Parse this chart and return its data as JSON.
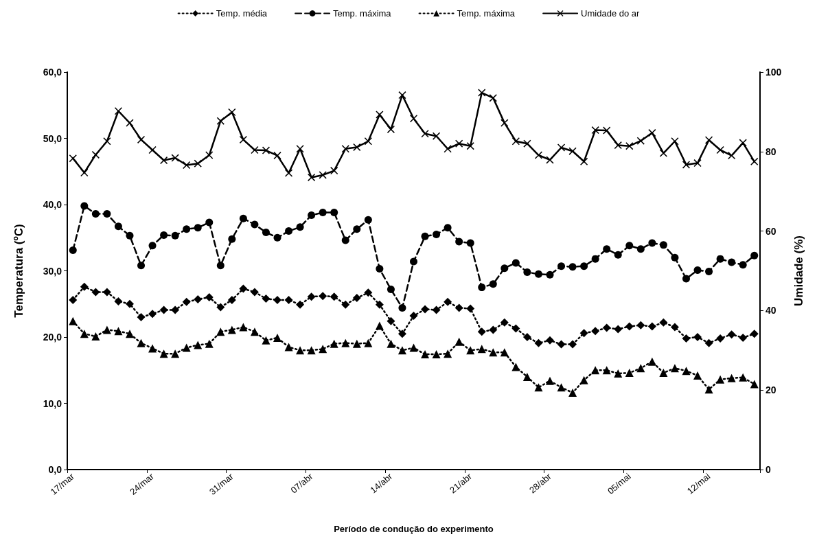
{
  "chart_data": {
    "type": "line",
    "xlabel": "Período de condução do experimento",
    "ylabel": "Temperatura (ºC)",
    "y2label": "Umidade (%)",
    "categories": [
      "17/mar",
      null,
      null,
      null,
      null,
      null,
      null,
      "24/mar",
      null,
      null,
      null,
      null,
      null,
      null,
      "31/mar",
      null,
      null,
      null,
      null,
      null,
      null,
      "07/abr",
      null,
      null,
      null,
      null,
      null,
      null,
      "14/abr",
      null,
      null,
      null,
      null,
      null,
      null,
      "21/abr",
      null,
      null,
      null,
      null,
      null,
      null,
      "28/abr",
      null,
      null,
      null,
      null,
      null,
      null,
      "05/mai",
      null,
      null,
      null,
      null,
      null,
      null,
      "12/mai",
      null,
      null,
      null,
      null
    ],
    "ylim": [
      0,
      60
    ],
    "yticks": [
      {
        "value": 0,
        "label": "0,0"
      },
      {
        "value": 10,
        "label": "10,0"
      },
      {
        "value": 20,
        "label": "20,0"
      },
      {
        "value": 30,
        "label": "30,0"
      },
      {
        "value": 40,
        "label": "40,0"
      },
      {
        "value": 50,
        "label": "50,0"
      },
      {
        "value": 60,
        "label": "60,0"
      }
    ],
    "y2lim": [
      0,
      100
    ],
    "y2ticks": [
      0,
      20,
      40,
      60,
      80,
      100
    ],
    "grid": false,
    "legend": "top",
    "series": [
      {
        "name": "Temp. média",
        "color": "#000000",
        "marker": "diamond",
        "line_style": "dotted",
        "values": [
          25.6,
          27.6,
          26.8,
          26.8,
          25.4,
          25.0,
          23.0,
          23.5,
          24.1,
          24.1,
          25.3,
          25.7,
          26.0,
          24.5,
          25.6,
          27.3,
          26.8,
          25.8,
          25.6,
          25.6,
          24.9,
          26.1,
          26.2,
          26.1,
          24.9,
          25.9,
          26.7,
          24.9,
          22.4,
          20.5,
          23.2,
          24.2,
          24.1,
          25.3,
          24.4,
          24.3,
          20.8,
          21.1,
          22.2,
          21.3,
          20.0,
          19.1,
          19.5,
          18.9,
          18.9,
          20.6,
          20.9,
          21.4,
          21.2,
          21.6,
          21.8,
          21.6,
          22.2,
          21.5,
          19.8,
          20.0,
          19.1,
          19.8,
          20.4,
          19.9,
          20.5
        ]
      },
      {
        "name": "Temp. máxima",
        "color": "#000000",
        "marker": "circle",
        "line_style": "dashed",
        "values": [
          33.1,
          39.8,
          38.6,
          38.6,
          36.7,
          35.3,
          30.8,
          33.8,
          35.4,
          35.3,
          36.3,
          36.5,
          37.3,
          30.8,
          34.8,
          37.9,
          37.0,
          35.8,
          35.0,
          36.0,
          36.6,
          38.4,
          38.8,
          38.8,
          34.6,
          36.3,
          37.7,
          30.3,
          27.2,
          24.4,
          31.4,
          35.2,
          35.5,
          36.5,
          34.4,
          34.2,
          27.5,
          28.0,
          30.4,
          31.2,
          29.8,
          29.5,
          29.4,
          30.7,
          30.6,
          30.7,
          31.8,
          33.3,
          32.4,
          33.8,
          33.3,
          34.2,
          33.9,
          32.0,
          28.8,
          30.1,
          29.9,
          31.8,
          31.3,
          30.9,
          32.3
        ]
      },
      {
        "name": "Temp. máxima",
        "color": "#000000",
        "marker": "triangle",
        "line_style": "dotted",
        "values": [
          22.4,
          20.5,
          20.1,
          21.1,
          20.9,
          20.5,
          19.1,
          18.3,
          17.5,
          17.5,
          18.4,
          18.8,
          19.0,
          20.8,
          21.1,
          21.5,
          20.8,
          19.5,
          19.9,
          18.5,
          18.0,
          18.0,
          18.2,
          19.0,
          19.1,
          19.0,
          19.1,
          21.7,
          19.0,
          18.0,
          18.4,
          17.4,
          17.4,
          17.5,
          19.3,
          18.0,
          18.2,
          17.7,
          17.7,
          15.5,
          14.0,
          12.4,
          13.4,
          12.4,
          11.6,
          13.5,
          15.0,
          15.0,
          14.5,
          14.6,
          15.3,
          16.3,
          14.6,
          15.3,
          14.9,
          14.2,
          12.1,
          13.6,
          13.8,
          13.9,
          12.9
        ]
      },
      {
        "name": "Umidade do ar",
        "color": "#000000",
        "marker": "cross",
        "line_style": "solid",
        "axis": "y2",
        "values": [
          78.3,
          74.7,
          79.2,
          82.6,
          90.2,
          87.2,
          83.0,
          80.4,
          77.8,
          78.4,
          76.6,
          77.0,
          79.1,
          87.7,
          89.9,
          83.0,
          80.4,
          80.3,
          79.0,
          74.6,
          80.7,
          73.5,
          74.1,
          75.2,
          80.7,
          81.1,
          82.6,
          89.3,
          85.6,
          94.2,
          88.3,
          84.5,
          83.9,
          80.7,
          82.0,
          81.4,
          94.8,
          93.5,
          87.2,
          82.6,
          82.0,
          79.1,
          77.9,
          81.0,
          80.1,
          77.5,
          85.4,
          85.3,
          81.6,
          81.4,
          82.7,
          84.7,
          79.6,
          82.6,
          76.7,
          77.1,
          82.9,
          80.4,
          79.0,
          82.2,
          77.5
        ]
      }
    ]
  }
}
